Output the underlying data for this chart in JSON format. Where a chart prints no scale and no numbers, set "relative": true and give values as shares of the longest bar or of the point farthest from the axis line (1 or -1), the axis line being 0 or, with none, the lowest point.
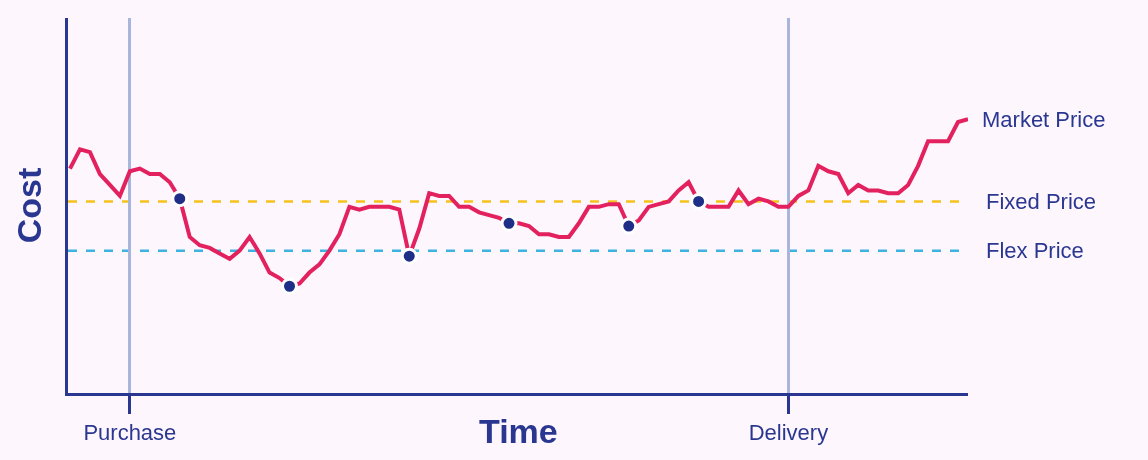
{
  "chart_data": {
    "type": "line",
    "xlabel": "Time",
    "ylabel": "Cost",
    "relative": true,
    "grid": "x",
    "tick_labels": "x",
    "marker": "none",
    "line_style": "solid",
    "categories": [
      null,
      null,
      null,
      null,
      null,
      null,
      "Purchase",
      null,
      null,
      null,
      null,
      null,
      null,
      null,
      null,
      null,
      null,
      null,
      null,
      null,
      null,
      null,
      null,
      null,
      null,
      null,
      null,
      null,
      null,
      null,
      null,
      null,
      null,
      null,
      null,
      null,
      null,
      null,
      null,
      null,
      null,
      null,
      null,
      null,
      null,
      null,
      null,
      null,
      null,
      null,
      null,
      null,
      null,
      null,
      null,
      null,
      null,
      null,
      null,
      null,
      null,
      null,
      null,
      null,
      null,
      null,
      null,
      null,
      null,
      null,
      null,
      null,
      "Delivery",
      null,
      null,
      null,
      null,
      null,
      null,
      null,
      null,
      null,
      null,
      null,
      null,
      null,
      null,
      null,
      null,
      null,
      null
    ],
    "series": [
      {
        "name": "Market Price",
        "color": "#e2215e",
        "values": [
          0.82,
          0.89,
          0.88,
          0.8,
          0.76,
          0.72,
          0.81,
          0.82,
          0.8,
          0.8,
          0.77,
          0.71,
          0.57,
          0.54,
          0.53,
          0.51,
          0.49,
          0.52,
          0.57,
          0.51,
          0.44,
          0.42,
          0.39,
          0.4,
          0.44,
          0.47,
          0.52,
          0.58,
          0.68,
          0.67,
          0.68,
          0.68,
          0.68,
          0.67,
          0.5,
          0.6,
          0.73,
          0.72,
          0.72,
          0.68,
          0.68,
          0.66,
          0.65,
          0.64,
          0.62,
          0.62,
          0.61,
          0.58,
          0.58,
          0.57,
          0.57,
          0.62,
          0.68,
          0.68,
          0.69,
          0.69,
          0.61,
          0.63,
          0.68,
          0.69,
          0.7,
          0.74,
          0.77,
          0.7,
          0.68,
          0.68,
          0.68,
          0.74,
          0.69,
          0.71,
          0.7,
          0.68,
          0.68,
          0.72,
          0.74,
          0.83,
          0.81,
          0.8,
          0.73,
          0.76,
          0.74,
          0.74,
          0.73,
          0.73,
          0.76,
          0.83,
          0.92,
          0.92,
          0.92,
          0.99,
          1
        ]
      },
      {
        "type": "scatter",
        "marker": "circle",
        "color": "#1f2f87",
        "values": [
          null,
          null,
          null,
          null,
          null,
          null,
          null,
          null,
          null,
          null,
          null,
          0.71,
          null,
          null,
          null,
          null,
          null,
          null,
          null,
          null,
          null,
          null,
          0.39,
          null,
          null,
          null,
          null,
          null,
          null,
          null,
          null,
          null,
          null,
          null,
          0.5,
          null,
          null,
          null,
          null,
          null,
          null,
          null,
          null,
          null,
          0.62,
          null,
          null,
          null,
          null,
          null,
          null,
          null,
          null,
          null,
          null,
          null,
          0.61,
          null,
          null,
          null,
          null,
          null,
          null,
          0.7,
          null,
          null,
          null,
          null,
          null,
          null,
          null,
          null,
          null,
          null,
          null,
          null,
          null,
          null,
          null,
          null,
          null,
          null,
          null,
          null,
          null,
          null,
          null,
          null,
          null,
          null,
          null
        ]
      }
    ],
    "ref_lines": [
      {
        "axis": "y",
        "value": 0.7,
        "label": "Fixed Price",
        "color": "#f5c21b",
        "line_style": "dashed"
      },
      {
        "axis": "y",
        "value": 0.52,
        "label": "Flex Price",
        "color": "#3db2e3",
        "line_style": "dashed"
      }
    ]
  }
}
